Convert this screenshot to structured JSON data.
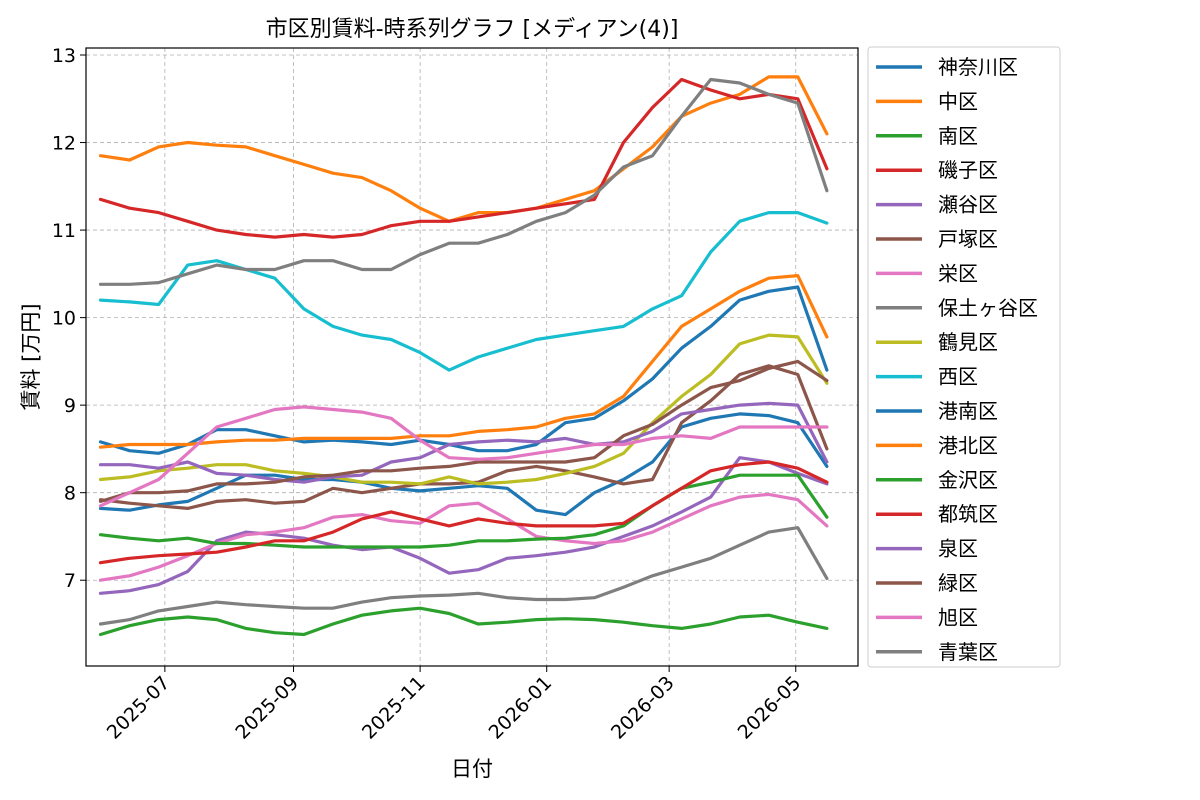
{
  "chart_data": {
    "type": "line",
    "title": "市区別賃料-時系列グラフ [メディアン(4)]",
    "xlabel": "日付",
    "ylabel": "賃料 [万円]",
    "xlim": [
      "2025-05-24",
      "2026-05-31"
    ],
    "ylim": [
      6.02,
      13.08
    ],
    "xticks": [
      "2025-07-01",
      "2025-09-01",
      "2025-11-01",
      "2026-01-01",
      "2026-03-01",
      "2026-05-01"
    ],
    "xtick_labels": [
      "2025-07",
      "2025-09",
      "2025-11",
      "2026-01",
      "2026-03",
      "2026-05"
    ],
    "yticks": [
      7,
      8,
      9,
      10,
      11,
      12,
      13
    ],
    "grid": true,
    "legend_position": "outside-right",
    "x": [
      "2025-05-31",
      "2025-06-14",
      "2025-06-28",
      "2025-07-12",
      "2025-07-26",
      "2025-08-09",
      "2025-08-23",
      "2025-09-06",
      "2025-09-20",
      "2025-10-04",
      "2025-10-18",
      "2025-11-01",
      "2025-11-15",
      "2025-11-29",
      "2025-12-13",
      "2025-12-27",
      "2026-01-10",
      "2026-01-24",
      "2026-02-07",
      "2026-02-21",
      "2026-03-07",
      "2026-03-21",
      "2026-04-04",
      "2026-04-18",
      "2026-05-02",
      "2026-05-16"
    ],
    "series": [
      {
        "name": "神奈川区",
        "color": "#1f77b4",
        "values": [
          7.82,
          7.8,
          7.86,
          7.9,
          8.05,
          8.2,
          8.2,
          8.15,
          8.15,
          8.12,
          8.05,
          8.02,
          8.05,
          8.08,
          8.05,
          7.8,
          7.75,
          8.0,
          8.15,
          8.35,
          8.75,
          8.85,
          8.9,
          8.88,
          8.8,
          8.3
        ]
      },
      {
        "name": "中区",
        "color": "#ff7f0e",
        "values": [
          11.85,
          11.8,
          11.95,
          12.0,
          11.97,
          11.95,
          11.85,
          11.75,
          11.65,
          11.6,
          11.45,
          11.25,
          11.1,
          11.2,
          11.2,
          11.25,
          11.35,
          11.45,
          11.7,
          11.95,
          12.3,
          12.45,
          12.55,
          12.75,
          12.75,
          12.1
        ]
      },
      {
        "name": "南区",
        "color": "#2ca02c",
        "values": [
          6.38,
          6.48,
          6.55,
          6.58,
          6.55,
          6.45,
          6.4,
          6.38,
          6.5,
          6.6,
          6.65,
          6.68,
          6.62,
          6.5,
          6.52,
          6.55,
          6.56,
          6.55,
          6.52,
          6.48,
          6.45,
          6.5,
          6.58,
          6.6,
          6.52,
          6.45
        ]
      },
      {
        "name": "磯子区",
        "color": "#d62728",
        "values": [
          11.35,
          11.25,
          11.2,
          11.1,
          11.0,
          10.95,
          10.92,
          10.95,
          10.92,
          10.95,
          11.05,
          11.1,
          11.1,
          11.15,
          11.2,
          11.25,
          11.3,
          11.35,
          12.0,
          12.4,
          12.72,
          12.6,
          12.5,
          12.55,
          12.5,
          11.7
        ]
      },
      {
        "name": "瀬谷区",
        "color": "#9467bd",
        "values": [
          6.85,
          6.88,
          6.95,
          7.1,
          7.45,
          7.55,
          7.52,
          7.48,
          7.4,
          7.35,
          7.38,
          7.25,
          7.08,
          7.12,
          7.25,
          7.28,
          7.32,
          7.38,
          7.5,
          7.62,
          7.78,
          7.95,
          8.4,
          8.35,
          8.22,
          8.1
        ]
      },
      {
        "name": "戸塚区",
        "color": "#8c564b",
        "values": [
          7.92,
          7.88,
          7.85,
          7.82,
          7.9,
          7.92,
          7.88,
          7.9,
          8.05,
          8.0,
          8.05,
          8.1,
          8.1,
          8.12,
          8.25,
          8.3,
          8.25,
          8.18,
          8.1,
          8.15,
          8.8,
          9.05,
          9.35,
          9.45,
          9.35,
          8.5
        ]
      },
      {
        "name": "栄区",
        "color": "#e377c2",
        "values": [
          7.0,
          7.05,
          7.15,
          7.28,
          7.42,
          7.52,
          7.55,
          7.6,
          7.72,
          7.75,
          7.68,
          7.65,
          7.85,
          7.88,
          7.7,
          7.5,
          7.45,
          7.42,
          7.45,
          7.55,
          7.7,
          7.85,
          7.95,
          7.98,
          7.92,
          7.62
        ]
      },
      {
        "name": "保土ヶ谷区",
        "color": "#7f7f7f",
        "values": [
          6.5,
          6.55,
          6.65,
          6.7,
          6.75,
          6.72,
          6.7,
          6.68,
          6.68,
          6.75,
          6.8,
          6.82,
          6.83,
          6.85,
          6.8,
          6.78,
          6.78,
          6.8,
          6.92,
          7.05,
          7.15,
          7.25,
          7.4,
          7.55,
          7.6,
          7.02
        ]
      },
      {
        "name": "鶴見区",
        "color": "#bcbd22",
        "values": [
          8.15,
          8.18,
          8.25,
          8.28,
          8.32,
          8.32,
          8.25,
          8.22,
          8.18,
          8.12,
          8.12,
          8.1,
          8.18,
          8.1,
          8.12,
          8.15,
          8.22,
          8.3,
          8.45,
          8.8,
          9.1,
          9.35,
          9.7,
          9.8,
          9.78,
          9.25
        ]
      },
      {
        "name": "西区",
        "color": "#17becf",
        "values": [
          10.2,
          10.18,
          10.15,
          10.6,
          10.65,
          10.55,
          10.45,
          10.1,
          9.9,
          9.8,
          9.75,
          9.6,
          9.4,
          9.55,
          9.65,
          9.75,
          9.8,
          9.85,
          9.9,
          10.1,
          10.25,
          10.75,
          11.1,
          11.2,
          11.2,
          11.08
        ]
      },
      {
        "name": "港南区",
        "color": "#1f77b4",
        "values": [
          8.58,
          8.48,
          8.45,
          8.55,
          8.72,
          8.72,
          8.65,
          8.58,
          8.6,
          8.58,
          8.55,
          8.6,
          8.55,
          8.48,
          8.48,
          8.55,
          8.8,
          8.85,
          9.05,
          9.3,
          9.65,
          9.9,
          10.2,
          10.3,
          10.35,
          9.4
        ]
      },
      {
        "name": "港北区",
        "color": "#ff7f0e",
        "values": [
          8.52,
          8.55,
          8.55,
          8.55,
          8.58,
          8.6,
          8.6,
          8.62,
          8.62,
          8.62,
          8.62,
          8.65,
          8.65,
          8.7,
          8.72,
          8.75,
          8.85,
          8.9,
          9.1,
          9.5,
          9.9,
          10.1,
          10.3,
          10.45,
          10.48,
          9.78
        ]
      },
      {
        "name": "金沢区",
        "color": "#2ca02c",
        "values": [
          7.52,
          7.48,
          7.45,
          7.48,
          7.42,
          7.42,
          7.4,
          7.38,
          7.38,
          7.38,
          7.38,
          7.38,
          7.4,
          7.45,
          7.45,
          7.47,
          7.48,
          7.52,
          7.62,
          7.85,
          8.05,
          8.12,
          8.2,
          8.2,
          8.2,
          7.72
        ]
      },
      {
        "name": "都筑区",
        "color": "#d62728",
        "values": [
          7.2,
          7.25,
          7.28,
          7.3,
          7.32,
          7.38,
          7.45,
          7.45,
          7.55,
          7.7,
          7.78,
          7.7,
          7.62,
          7.7,
          7.65,
          7.62,
          7.62,
          7.62,
          7.65,
          7.85,
          8.05,
          8.25,
          8.32,
          8.35,
          8.28,
          8.12
        ]
      },
      {
        "name": "泉区",
        "color": "#9467bd",
        "values": [
          8.32,
          8.32,
          8.28,
          8.35,
          8.22,
          8.2,
          8.15,
          8.12,
          8.18,
          8.2,
          8.35,
          8.4,
          8.55,
          8.58,
          8.6,
          8.58,
          8.62,
          8.55,
          8.58,
          8.7,
          8.9,
          8.95,
          9.0,
          9.02,
          9.0,
          8.35
        ]
      },
      {
        "name": "緑区",
        "color": "#8c564b",
        "values": [
          7.9,
          8.0,
          8.0,
          8.02,
          8.1,
          8.1,
          8.12,
          8.18,
          8.2,
          8.25,
          8.25,
          8.28,
          8.3,
          8.35,
          8.35,
          8.35,
          8.35,
          8.4,
          8.65,
          8.78,
          9.0,
          9.2,
          9.28,
          9.42,
          9.5,
          9.28
        ]
      },
      {
        "name": "旭区",
        "color": "#e377c2",
        "values": [
          7.85,
          8.0,
          8.15,
          8.45,
          8.75,
          8.85,
          8.95,
          8.98,
          8.95,
          8.92,
          8.85,
          8.6,
          8.4,
          8.38,
          8.4,
          8.45,
          8.5,
          8.55,
          8.55,
          8.62,
          8.65,
          8.62,
          8.75,
          8.75,
          8.75,
          8.75
        ]
      },
      {
        "name": "青葉区",
        "color": "#7f7f7f",
        "values": [
          10.38,
          10.38,
          10.4,
          10.5,
          10.6,
          10.55,
          10.55,
          10.65,
          10.65,
          10.55,
          10.55,
          10.72,
          10.85,
          10.85,
          10.95,
          11.1,
          11.2,
          11.4,
          11.72,
          11.85,
          12.3,
          12.72,
          12.68,
          12.55,
          12.45,
          11.45
        ]
      }
    ]
  }
}
